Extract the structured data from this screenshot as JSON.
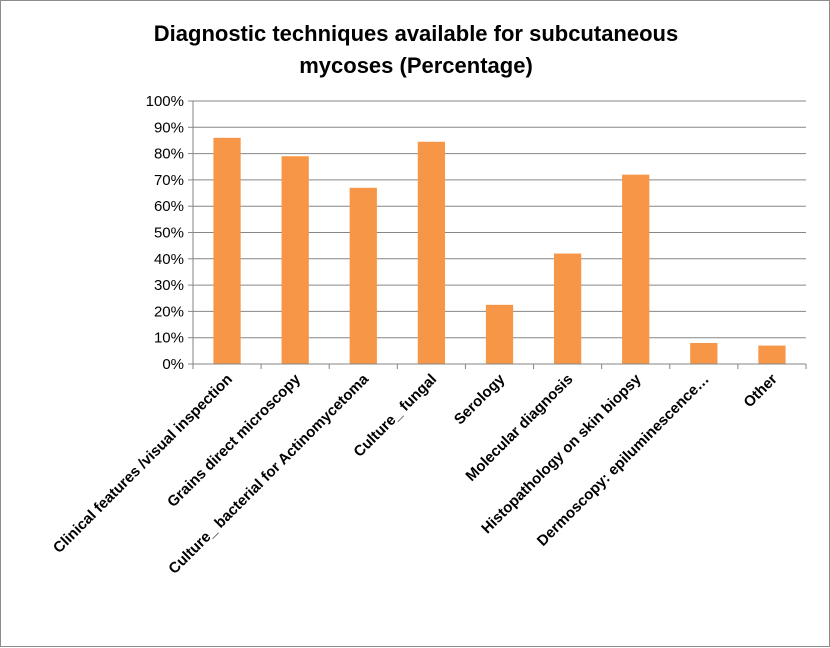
{
  "chart_data": {
    "type": "bar",
    "title": "Diagnostic techniques available for subcutaneous mycoses (Percentage)",
    "title_lines": [
      "Diagnostic techniques available for subcutaneous",
      "mycoses (Percentage)"
    ],
    "categories": [
      "Clinical features /visual inspection",
      "Grains direct microscopy",
      "Culture_ bacterial for Actinomycetoma",
      "Culture_ fungal",
      "Serology",
      "Molecular diagnosis",
      "Histopathology on skin biopsy",
      "Dermoscopy: epiluminescence…",
      "Other"
    ],
    "values": [
      86,
      79,
      67,
      84.5,
      22.5,
      42,
      72,
      8,
      7
    ],
    "ylim": [
      0,
      100
    ],
    "yticks": [
      0,
      10,
      20,
      30,
      40,
      50,
      60,
      70,
      80,
      90,
      100
    ],
    "ytick_labels": [
      "0%",
      "10%",
      "20%",
      "30%",
      "40%",
      "50%",
      "60%",
      "70%",
      "80%",
      "90%",
      "100%"
    ],
    "xlabel": "",
    "ylabel": "",
    "grid": true,
    "legend": "none",
    "bar_color": "#f79646",
    "grid_color": "#868686"
  }
}
